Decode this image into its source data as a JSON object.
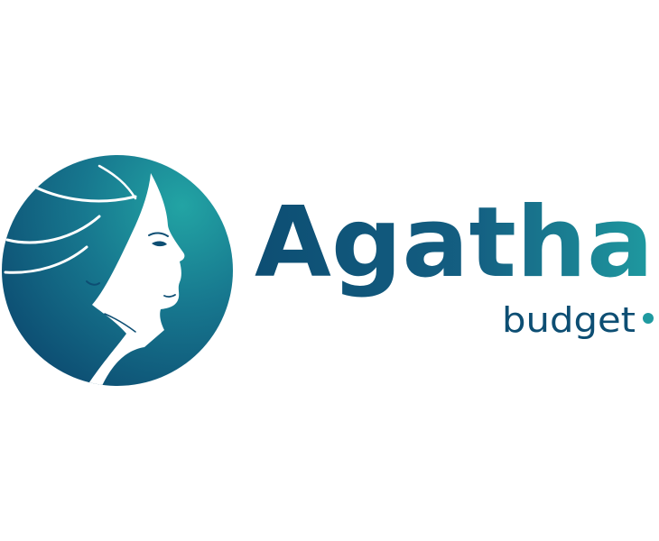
{
  "brand": {
    "name": "Agatha",
    "tagline": "budget",
    "colors": {
      "primary_dark": "#0d4e73",
      "primary_teal": "#1f9aa0",
      "tagline": "#0d4e73",
      "background": "#ffffff"
    },
    "mark_icon": "woman-profile-in-circle-icon"
  }
}
